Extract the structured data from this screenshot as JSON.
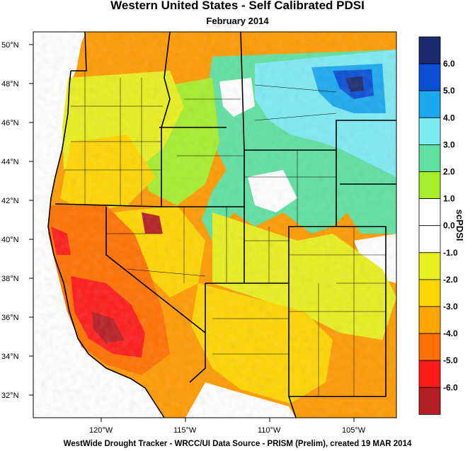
{
  "title": "Western United States - Self Calibrated PDSI",
  "subtitle": "February 2014",
  "footer": "WestWide Drought Tracker - WRCC/UI  Data Source - PRISM (Prelim), created 19 MAR 2014",
  "latitude_labels": [
    "50°N",
    "48°N",
    "46°N",
    "44°N",
    "42°N",
    "40°N",
    "38°N",
    "36°N",
    "34°N",
    "32°N"
  ],
  "longitude_labels": [
    "120°W",
    "115°W",
    "110°W",
    "105°W"
  ],
  "colorbar": {
    "title": "scPDSI",
    "labels": [
      "6.0",
      "5.0",
      "4.0",
      "3.0",
      "2.0",
      "1.0",
      "0.0",
      "-1.0",
      "-2.0",
      "-3.0",
      "-4.0",
      "-5.0",
      "-6.0"
    ],
    "colors": [
      "#1a2a6c",
      "#0a4fd6",
      "#1aa8ee",
      "#7eeaf2",
      "#5fe0a0",
      "#a6ee2c",
      "#ffffff",
      "#ffffff",
      "#e8ef1e",
      "#ffd500",
      "#ffa500",
      "#ff7000",
      "#ff1a1a",
      "#b51e22"
    ]
  }
}
